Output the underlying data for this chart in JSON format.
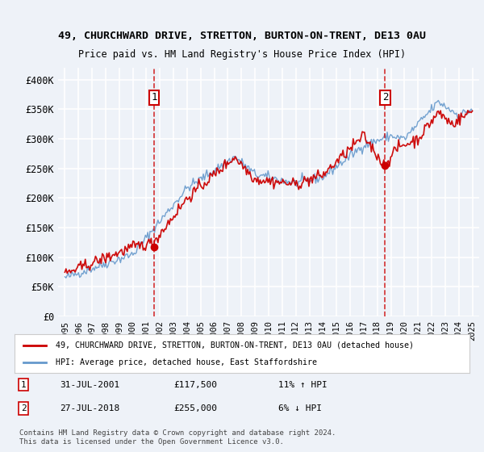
{
  "title1": "49, CHURCHWARD DRIVE, STRETTON, BURTON-ON-TRENT, DE13 0AU",
  "title2": "Price paid vs. HM Land Registry's House Price Index (HPI)",
  "bg_color": "#eef2f8",
  "plot_bg_color": "#eef2f8",
  "grid_color": "#ffffff",
  "hpi_color": "#6699cc",
  "price_color": "#cc0000",
  "marker1_x": 2001.58,
  "marker2_x": 2018.58,
  "marker1_price": 117500,
  "marker2_price": 255000,
  "marker1_label": "1",
  "marker2_label": "2",
  "marker1_date": "31-JUL-2001",
  "marker2_date": "27-JUL-2018",
  "marker1_hpi": "11% ↑ HPI",
  "marker2_hpi": "6% ↓ HPI",
  "legend_red": "49, CHURCHWARD DRIVE, STRETTON, BURTON-ON-TRENT, DE13 0AU (detached house)",
  "legend_blue": "HPI: Average price, detached house, East Staffordshire",
  "footer1": "Contains HM Land Registry data © Crown copyright and database right 2024.",
  "footer2": "This data is licensed under the Open Government Licence v3.0.",
  "ylim": [
    0,
    420000
  ],
  "xlim": [
    1994.5,
    2025.5
  ],
  "yticks": [
    0,
    50000,
    100000,
    150000,
    200000,
    250000,
    300000,
    350000,
    400000
  ],
  "ytick_labels": [
    "£0",
    "£50K",
    "£100K",
    "£150K",
    "£200K",
    "£250K",
    "£300K",
    "£350K",
    "£400K"
  ],
  "xticks": [
    1995,
    1996,
    1997,
    1998,
    1999,
    2000,
    2001,
    2002,
    2003,
    2004,
    2005,
    2006,
    2007,
    2008,
    2009,
    2010,
    2011,
    2012,
    2013,
    2014,
    2015,
    2016,
    2017,
    2018,
    2019,
    2020,
    2021,
    2022,
    2023,
    2024,
    2025
  ]
}
